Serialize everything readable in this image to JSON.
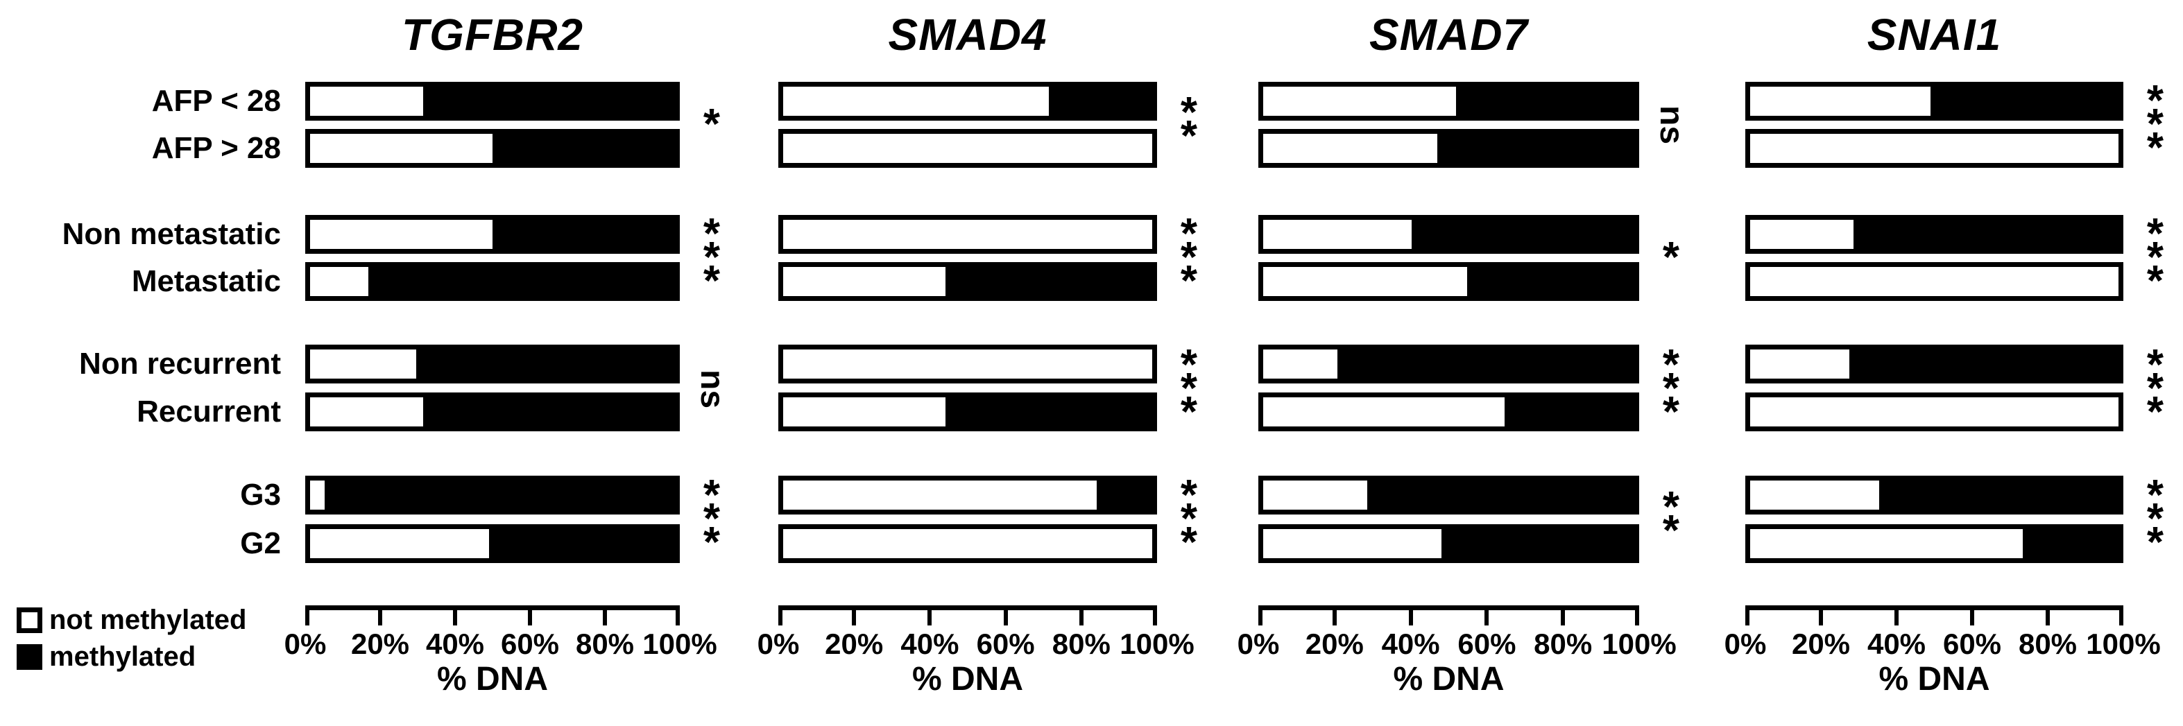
{
  "figure": {
    "background": "#ffffff",
    "ink_color": "#000000"
  },
  "chart_data": {
    "type": "bar",
    "orientation": "horizontal",
    "stacking": "percent",
    "grid": false,
    "categories": [
      "AFP < 28",
      "AFP > 28",
      "Non metastatic",
      "Metastatic",
      "Non recurrent",
      "Recurrent",
      "G3",
      "G2"
    ],
    "pair_groups": [
      [
        0,
        1
      ],
      [
        2,
        3
      ],
      [
        4,
        5
      ],
      [
        6,
        7
      ]
    ],
    "x_ticks": [
      "0%",
      "20%",
      "40%",
      "60%",
      "80%",
      "100%"
    ],
    "xlim": [
      0,
      100
    ],
    "xlabel": "% DNA",
    "legend": {
      "position": "bottom-left",
      "items": [
        {
          "label": "not methylated",
          "fill": "#ffffff"
        },
        {
          "label": "methylated",
          "fill": "#000000"
        }
      ]
    },
    "panels": [
      {
        "gene": "TGFBR2",
        "series": [
          {
            "name": "not methylated",
            "values": [
              31,
              50,
              50,
              16,
              29,
              31,
              4,
              49
            ]
          },
          {
            "name": "methylated",
            "values": [
              69,
              50,
              50,
              84,
              71,
              69,
              96,
              51
            ]
          }
        ],
        "significance": [
          "*",
          "***",
          "ns",
          "***"
        ]
      },
      {
        "gene": "SMAD4",
        "series": [
          {
            "name": "not methylated",
            "values": [
              72,
              100,
              100,
              44,
              100,
              44,
              85,
              100
            ]
          },
          {
            "name": "methylated",
            "values": [
              28,
              0,
              0,
              56,
              0,
              56,
              15,
              0
            ]
          }
        ],
        "significance": [
          "**",
          "***",
          "***",
          "***"
        ]
      },
      {
        "gene": "SMAD7",
        "series": [
          {
            "name": "not methylated",
            "values": [
              52,
              47,
              40,
              55,
              20,
              65,
              28,
              48
            ]
          },
          {
            "name": "methylated",
            "values": [
              48,
              53,
              60,
              45,
              80,
              35,
              72,
              52
            ]
          }
        ],
        "significance": [
          "ns",
          "*",
          "***",
          "**"
        ]
      },
      {
        "gene": "SNAI1",
        "series": [
          {
            "name": "not methylated",
            "values": [
              49,
              100,
              28,
              100,
              27,
              100,
              35,
              74
            ]
          },
          {
            "name": "methylated",
            "values": [
              51,
              0,
              72,
              0,
              73,
              0,
              65,
              26
            ]
          }
        ],
        "significance": [
          "***",
          "***",
          "***",
          "***"
        ]
      }
    ]
  }
}
